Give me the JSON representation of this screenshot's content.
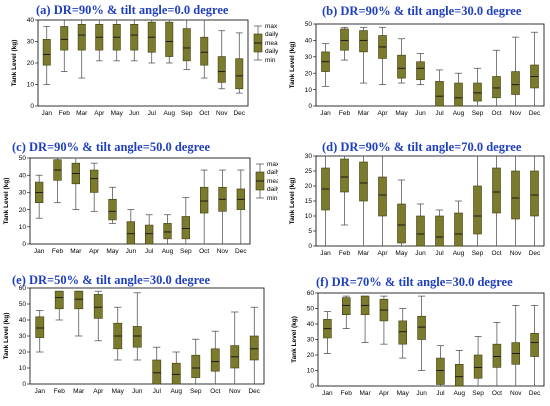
{
  "colors": {
    "box": "#7b7b2e",
    "box_stroke": "#3d3d10",
    "title": "#1f3fbf",
    "frame": "#000000"
  },
  "months": [
    "Jan",
    "Feb",
    "Mar",
    "Apr",
    "May",
    "Jun",
    "Jul",
    "Aug",
    "Sep",
    "Oct",
    "Nov",
    "Dec"
  ],
  "legend_labels": {
    "a": [
      "max",
      "daily high",
      "mean",
      "daily low",
      "min"
    ],
    "c": [
      "max",
      "daily higl",
      "mean",
      "daily low",
      "min"
    ]
  },
  "chart_data": [
    {
      "id": "a",
      "type": "boxplot",
      "title": "(a) DR=90% & tilt angle=0.0 degree",
      "ylabel": "Tank Level (kg)",
      "ylim": [
        0,
        40
      ],
      "yticks": [
        0,
        10,
        20,
        30,
        40
      ],
      "boxes": [
        {
          "min": 10,
          "low": 19,
          "mean": 24,
          "high": 31,
          "max": 37
        },
        {
          "min": 16,
          "low": 26,
          "mean": 31,
          "high": 37,
          "max": 40
        },
        {
          "min": 13,
          "low": 26,
          "mean": 33,
          "high": 38,
          "max": 40
        },
        {
          "min": 21,
          "low": 26,
          "mean": 32,
          "high": 38,
          "max": 40
        },
        {
          "min": 21,
          "low": 26,
          "mean": 32,
          "high": 38,
          "max": 40
        },
        {
          "min": 21,
          "low": 26,
          "mean": 33,
          "high": 38,
          "max": 40
        },
        {
          "min": 20,
          "low": 25,
          "mean": 32,
          "high": 39,
          "max": 40
        },
        {
          "min": 20,
          "low": 23,
          "mean": 30,
          "high": 39,
          "max": 40
        },
        {
          "min": 17,
          "low": 21,
          "mean": 27,
          "high": 36,
          "max": 40
        },
        {
          "min": 13,
          "low": 19,
          "mean": 25,
          "high": 32,
          "max": 40
        },
        {
          "min": 8,
          "low": 11,
          "mean": 16,
          "high": 23,
          "max": 35
        },
        {
          "min": 6,
          "low": 8,
          "mean": 14,
          "high": 22,
          "max": 34
        }
      ],
      "legend": true
    },
    {
      "id": "b",
      "type": "boxplot",
      "title": "(b) DR=90% & tilt angle=30.0 degree",
      "ylabel": "Tank Level (kg)",
      "ylim": [
        0,
        50
      ],
      "yticks": [
        0,
        10,
        20,
        30,
        40,
        50
      ],
      "boxes": [
        {
          "min": 12,
          "low": 21,
          "mean": 27,
          "high": 33,
          "max": 38
        },
        {
          "min": 28,
          "low": 34,
          "mean": 40,
          "high": 47,
          "max": 48
        },
        {
          "min": 14,
          "low": 33,
          "mean": 40,
          "high": 46,
          "max": 48
        },
        {
          "min": 13,
          "low": 29,
          "mean": 36,
          "high": 43,
          "max": 48
        },
        {
          "min": 14,
          "low": 17,
          "mean": 23,
          "high": 31,
          "max": 41
        },
        {
          "min": 13,
          "low": 16,
          "mean": 23,
          "high": 27,
          "max": 32
        },
        {
          "min": 0,
          "low": 0,
          "mean": 6,
          "high": 15,
          "max": 22
        },
        {
          "min": 0,
          "low": 0,
          "mean": 5,
          "high": 14,
          "max": 20
        },
        {
          "min": 0,
          "low": 3,
          "mean": 8,
          "high": 14,
          "max": 23
        },
        {
          "min": 0,
          "low": 5,
          "mean": 11,
          "high": 18,
          "max": 34
        },
        {
          "min": 0,
          "low": 7,
          "mean": 13,
          "high": 21,
          "max": 42
        },
        {
          "min": 0,
          "low": 11,
          "mean": 18,
          "high": 25,
          "max": 45
        }
      ],
      "legend": false
    },
    {
      "id": "c",
      "type": "boxplot",
      "title": "(c) DR=90% & tilt angle=50.0 degree",
      "ylabel": "Tank Level (kg)",
      "ylim": [
        0,
        50
      ],
      "yticks": [
        0,
        10,
        20,
        30,
        40,
        50
      ],
      "boxes": [
        {
          "min": 15,
          "low": 24,
          "mean": 30,
          "high": 36,
          "max": 40
        },
        {
          "min": 24,
          "low": 37,
          "mean": 43,
          "high": 49,
          "max": 50
        },
        {
          "min": 20,
          "low": 35,
          "mean": 41,
          "high": 47,
          "max": 50
        },
        {
          "min": 19,
          "low": 30,
          "mean": 38,
          "high": 43,
          "max": 47
        },
        {
          "min": 12,
          "low": 14,
          "mean": 19,
          "high": 26,
          "max": 33
        },
        {
          "min": 0,
          "low": 0,
          "mean": 6,
          "high": 13,
          "max": 20
        },
        {
          "min": 0,
          "low": 0,
          "mean": 6,
          "high": 11,
          "max": 17
        },
        {
          "min": 0,
          "low": 3,
          "mean": 7,
          "high": 12,
          "max": 17
        },
        {
          "min": 0,
          "low": 3,
          "mean": 9,
          "high": 16,
          "max": 27
        },
        {
          "min": 0,
          "low": 18,
          "mean": 25,
          "high": 33,
          "max": 43
        },
        {
          "min": 0,
          "low": 19,
          "mean": 26,
          "high": 33,
          "max": 43
        },
        {
          "min": 0,
          "low": 20,
          "mean": 26,
          "high": 32,
          "max": 43
        }
      ],
      "legend": true
    },
    {
      "id": "d",
      "type": "boxplot",
      "title": "(d) DR=90% & tilt angle=70.0 degree",
      "ylabel": "Tank Level (kg)",
      "ylim": [
        0,
        30
      ],
      "yticks": [
        0,
        5,
        10,
        15,
        20,
        25,
        30
      ],
      "boxes": [
        {
          "min": 0,
          "low": 12,
          "mean": 19,
          "high": 26,
          "max": 30
        },
        {
          "min": 7,
          "low": 18,
          "mean": 23,
          "high": 29,
          "max": 30
        },
        {
          "min": 0,
          "low": 15,
          "mean": 21,
          "high": 28,
          "max": 30
        },
        {
          "min": 0,
          "low": 10,
          "mean": 17,
          "high": 23,
          "max": 30
        },
        {
          "min": 0,
          "low": 1,
          "mean": 7,
          "high": 14,
          "max": 22
        },
        {
          "min": 0,
          "low": 0,
          "mean": 4,
          "high": 10,
          "max": 14
        },
        {
          "min": 0,
          "low": 0,
          "mean": 3,
          "high": 10,
          "max": 12
        },
        {
          "min": 0,
          "low": 0,
          "mean": 4,
          "high": 11,
          "max": 15
        },
        {
          "min": 0,
          "low": 4,
          "mean": 10,
          "high": 20,
          "max": 30
        },
        {
          "min": 0,
          "low": 11,
          "mean": 18,
          "high": 26,
          "max": 30
        },
        {
          "min": 0,
          "low": 9,
          "mean": 16,
          "high": 25,
          "max": 30
        },
        {
          "min": 0,
          "low": 10,
          "mean": 17,
          "high": 25,
          "max": 30
        }
      ],
      "legend": false
    },
    {
      "id": "e",
      "type": "boxplot",
      "title": "(e) DR=50% & tilt angle=30.0 degree",
      "ylabel": "Tank Level (kg)",
      "ylim": [
        0,
        60
      ],
      "yticks": [
        0,
        10,
        20,
        30,
        40,
        50,
        60
      ],
      "boxes": [
        {
          "min": 20,
          "low": 29,
          "mean": 35,
          "high": 42,
          "max": 46
        },
        {
          "min": 40,
          "low": 47,
          "mean": 54,
          "high": 58,
          "max": 58
        },
        {
          "min": 30,
          "low": 47,
          "mean": 53,
          "high": 58,
          "max": 58
        },
        {
          "min": 27,
          "low": 41,
          "mean": 48,
          "high": 56,
          "max": 58
        },
        {
          "min": 15,
          "low": 22,
          "mean": 30,
          "high": 38,
          "max": 48
        },
        {
          "min": 15,
          "low": 23,
          "mean": 30,
          "high": 36,
          "max": 57
        },
        {
          "min": 0,
          "low": 0,
          "mean": 7,
          "high": 15,
          "max": 23
        },
        {
          "min": 0,
          "low": 0,
          "mean": 6,
          "high": 13,
          "max": 20
        },
        {
          "min": 0,
          "low": 4,
          "mean": 10,
          "high": 18,
          "max": 28
        },
        {
          "min": 0,
          "low": 8,
          "mean": 14,
          "high": 22,
          "max": 33
        },
        {
          "min": 0,
          "low": 10,
          "mean": 17,
          "high": 24,
          "max": 45
        },
        {
          "min": 0,
          "low": 15,
          "mean": 22,
          "high": 30,
          "max": 48
        }
      ],
      "legend": false
    },
    {
      "id": "f",
      "type": "boxplot",
      "title": "(f) DR=70% & tilt angle=30.0 degree",
      "ylabel": "Tank Level (kg)",
      "ylim": [
        0,
        60
      ],
      "yticks": [
        0,
        10,
        20,
        30,
        40,
        50,
        60
      ],
      "boxes": [
        {
          "min": 21,
          "low": 31,
          "mean": 37,
          "high": 43,
          "max": 48
        },
        {
          "min": 37,
          "low": 46,
          "mean": 52,
          "high": 57,
          "max": 58
        },
        {
          "min": 28,
          "low": 46,
          "mean": 52,
          "high": 58,
          "max": 58
        },
        {
          "min": 27,
          "low": 42,
          "mean": 49,
          "high": 56,
          "max": 58
        },
        {
          "min": 18,
          "low": 27,
          "mean": 35,
          "high": 42,
          "max": 50
        },
        {
          "min": 10,
          "low": 30,
          "mean": 38,
          "high": 45,
          "max": 58
        },
        {
          "min": 0,
          "low": 1,
          "mean": 10,
          "high": 18,
          "max": 26
        },
        {
          "min": 0,
          "low": 0,
          "mean": 6,
          "high": 14,
          "max": 23
        },
        {
          "min": 0,
          "low": 5,
          "mean": 12,
          "high": 20,
          "max": 32
        },
        {
          "min": 0,
          "low": 12,
          "mean": 19,
          "high": 27,
          "max": 41
        },
        {
          "min": 0,
          "low": 14,
          "mean": 21,
          "high": 28,
          "max": 52
        },
        {
          "min": 0,
          "low": 19,
          "mean": 28,
          "high": 34,
          "max": 52
        }
      ],
      "legend": false
    }
  ]
}
